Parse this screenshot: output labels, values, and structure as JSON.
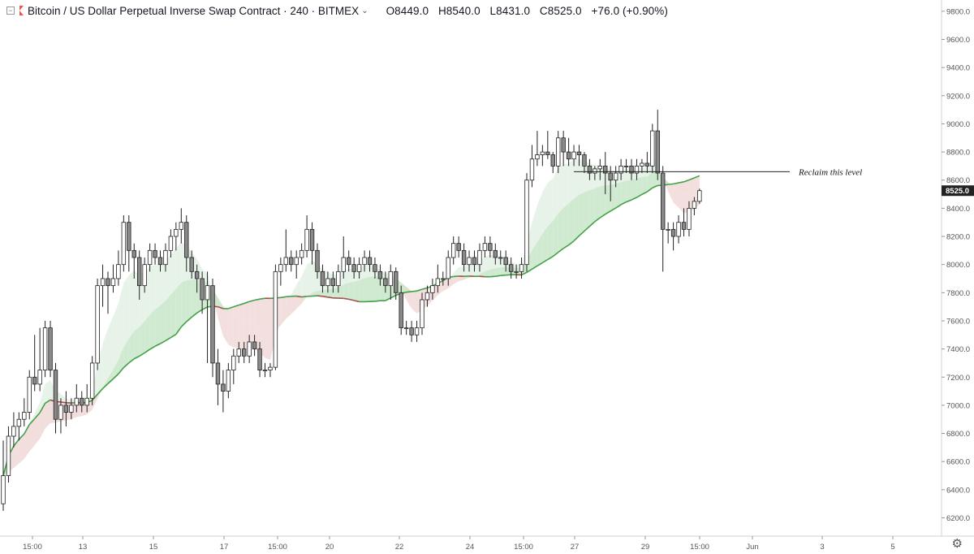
{
  "header": {
    "symbol": "Bitcoin / US Dollar Perpetual Inverse Swap Contract",
    "interval": "240",
    "exchange": "BITMEX",
    "open": "O8449.0",
    "high": "H8540.0",
    "low": "L8431.0",
    "close": "C8525.0",
    "change": "+76.0 (+0.90%)"
  },
  "chart_data": {
    "type": "candlestick",
    "y_ticks": [
      6200,
      6400,
      6600,
      6800,
      7000,
      7200,
      7400,
      7600,
      7800,
      8000,
      8200,
      8400,
      8600,
      8800,
      9000,
      9200,
      9400,
      9600,
      9800
    ],
    "y_tick_labels": [
      "6200.0",
      "6400.0",
      "6600.0",
      "6800.0",
      "7000.0",
      "7200.0",
      "7400.0",
      "7600.0",
      "7800.0",
      "8000.0",
      "8200.0",
      "8400.0",
      "8600.0",
      "8800.0",
      "9000.0",
      "9200.0",
      "9400.0",
      "9600.0",
      "9800.0"
    ],
    "ylim": [
      6070,
      9880
    ],
    "x_ticks": [
      "15:00",
      "13",
      "15",
      "17",
      "15:00",
      "20",
      "22",
      "24",
      "15:00",
      "27",
      "29",
      "15:00",
      "Jun",
      "3",
      "5"
    ],
    "last_price": "8525.0",
    "annotation": {
      "text": "Reclaim this level",
      "price": 8660
    },
    "candles": [
      [
        6300,
        6750,
        6250,
        6500
      ],
      [
        6500,
        6850,
        6450,
        6780
      ],
      [
        6780,
        6950,
        6700,
        6850
      ],
      [
        6850,
        6950,
        6750,
        6900
      ],
      [
        6900,
        7050,
        6850,
        6950
      ],
      [
        6950,
        7250,
        6900,
        7200
      ],
      [
        7200,
        7500,
        7100,
        7150
      ],
      [
        7150,
        7550,
        7100,
        7250
      ],
      [
        7250,
        7600,
        7200,
        7550
      ],
      [
        7550,
        7600,
        7200,
        7250
      ],
      [
        7250,
        7300,
        6800,
        6900
      ],
      [
        6900,
        7050,
        6800,
        7000
      ],
      [
        7000,
        7100,
        6850,
        6950
      ],
      [
        6950,
        7050,
        6900,
        7000
      ],
      [
        7000,
        7150,
        6950,
        7050
      ],
      [
        7050,
        7100,
        6950,
        7000
      ],
      [
        7000,
        7150,
        6950,
        7050
      ],
      [
        7050,
        7350,
        7000,
        7300
      ],
      [
        7300,
        7900,
        7250,
        7850
      ],
      [
        7850,
        8000,
        7700,
        7900
      ],
      [
        7900,
        7950,
        7650,
        7850
      ],
      [
        7850,
        8000,
        7800,
        7900
      ],
      [
        7900,
        8100,
        7850,
        8000
      ],
      [
        8000,
        8350,
        7950,
        8300
      ],
      [
        8300,
        8350,
        7950,
        8100
      ],
      [
        8100,
        8150,
        7900,
        8050
      ],
      [
        8050,
        8100,
        7750,
        7850
      ],
      [
        7850,
        8050,
        7800,
        8000
      ],
      [
        8000,
        8150,
        7950,
        8100
      ],
      [
        8100,
        8150,
        8000,
        8050
      ],
      [
        8050,
        8100,
        7950,
        8000
      ],
      [
        8000,
        8150,
        7950,
        8100
      ],
      [
        8100,
        8250,
        8050,
        8200
      ],
      [
        8200,
        8300,
        8100,
        8250
      ],
      [
        8250,
        8400,
        8150,
        8300
      ],
      [
        8300,
        8350,
        7950,
        8050
      ],
      [
        8050,
        8100,
        7900,
        7950
      ],
      [
        7950,
        8000,
        7800,
        7900
      ],
      [
        7900,
        7950,
        7650,
        7750
      ],
      [
        7750,
        7950,
        7300,
        7850
      ],
      [
        7850,
        7900,
        7200,
        7300
      ],
      [
        7300,
        7400,
        7000,
        7150
      ],
      [
        7150,
        7250,
        6950,
        7100
      ],
      [
        7100,
        7300,
        7050,
        7250
      ],
      [
        7250,
        7400,
        7150,
        7350
      ],
      [
        7350,
        7450,
        7300,
        7400
      ],
      [
        7400,
        7450,
        7300,
        7350
      ],
      [
        7350,
        7500,
        7300,
        7450
      ],
      [
        7450,
        7500,
        7350,
        7400
      ],
      [
        7400,
        7450,
        7200,
        7250
      ],
      [
        7250,
        7300,
        7200,
        7250
      ],
      [
        7250,
        7300,
        7200,
        7270
      ],
      [
        7270,
        8000,
        7250,
        7950
      ],
      [
        7950,
        8050,
        7850,
        8000
      ],
      [
        8000,
        8250,
        7950,
        8050
      ],
      [
        8050,
        8100,
        7950,
        8000
      ],
      [
        8000,
        8100,
        7900,
        8050
      ],
      [
        8050,
        8150,
        8000,
        8100
      ],
      [
        8100,
        8350,
        8050,
        8250
      ],
      [
        8250,
        8300,
        8000,
        8100
      ],
      [
        8100,
        8150,
        7900,
        7950
      ],
      [
        7950,
        8000,
        7800,
        7850
      ],
      [
        7850,
        7950,
        7800,
        7900
      ],
      [
        7900,
        7950,
        7800,
        7850
      ],
      [
        7850,
        8000,
        7800,
        7950
      ],
      [
        7950,
        8200,
        7900,
        8050
      ],
      [
        8050,
        8100,
        7950,
        8000
      ],
      [
        8000,
        8050,
        7900,
        7950
      ],
      [
        7950,
        8050,
        7900,
        8000
      ],
      [
        8000,
        8100,
        7950,
        8050
      ],
      [
        8050,
        8100,
        7950,
        8000
      ],
      [
        8000,
        8050,
        7900,
        7950
      ],
      [
        7950,
        8000,
        7850,
        7900
      ],
      [
        7900,
        7950,
        7800,
        7850
      ],
      [
        7850,
        8000,
        7750,
        7950
      ],
      [
        7950,
        7980,
        7750,
        7800
      ],
      [
        7800,
        7850,
        7500,
        7550
      ],
      [
        7550,
        7600,
        7500,
        7550
      ],
      [
        7550,
        7600,
        7450,
        7500
      ],
      [
        7500,
        7600,
        7450,
        7550
      ],
      [
        7550,
        7800,
        7500,
        7750
      ],
      [
        7750,
        7850,
        7700,
        7800
      ],
      [
        7800,
        7900,
        7750,
        7850
      ],
      [
        7850,
        8000,
        7800,
        7900
      ],
      [
        7900,
        7950,
        7850,
        7900
      ],
      [
        7900,
        8100,
        7850,
        8050
      ],
      [
        8050,
        8200,
        8000,
        8150
      ],
      [
        8150,
        8200,
        8050,
        8100
      ],
      [
        8100,
        8150,
        7950,
        8000
      ],
      [
        8000,
        8100,
        7950,
        8050
      ],
      [
        8050,
        8100,
        7950,
        8000
      ],
      [
        8000,
        8150,
        7950,
        8100
      ],
      [
        8100,
        8200,
        8050,
        8150
      ],
      [
        8150,
        8200,
        8050,
        8100
      ],
      [
        8100,
        8150,
        8000,
        8050
      ],
      [
        8050,
        8100,
        8000,
        8050
      ],
      [
        8050,
        8100,
        7950,
        8000
      ],
      [
        8000,
        8050,
        7900,
        7950
      ],
      [
        7950,
        8000,
        7900,
        7950
      ],
      [
        7950,
        8050,
        7900,
        8000
      ],
      [
        8000,
        8650,
        7950,
        8600
      ],
      [
        8600,
        8850,
        8550,
        8750
      ],
      [
        8750,
        8950,
        8700,
        8780
      ],
      [
        8780,
        8850,
        8700,
        8800
      ],
      [
        8800,
        8950,
        8750,
        8780
      ],
      [
        8780,
        8800,
        8650,
        8700
      ],
      [
        8700,
        8950,
        8650,
        8900
      ],
      [
        8900,
        8950,
        8700,
        8800
      ],
      [
        8800,
        8900,
        8700,
        8750
      ],
      [
        8750,
        8850,
        8700,
        8800
      ],
      [
        8800,
        8850,
        8700,
        8780
      ],
      [
        8780,
        8800,
        8650,
        8700
      ],
      [
        8700,
        8750,
        8600,
        8650
      ],
      [
        8650,
        8700,
        8600,
        8680
      ],
      [
        8680,
        8750,
        8600,
        8700
      ],
      [
        8700,
        8800,
        8500,
        8650
      ],
      [
        8650,
        8700,
        8450,
        8600
      ],
      [
        8600,
        8700,
        8550,
        8650
      ],
      [
        8650,
        8750,
        8600,
        8700
      ],
      [
        8700,
        8750,
        8650,
        8700
      ],
      [
        8700,
        8750,
        8600,
        8650
      ],
      [
        8650,
        8750,
        8600,
        8700
      ],
      [
        8700,
        8750,
        8650,
        8720
      ],
      [
        8720,
        8800,
        8650,
        8700
      ],
      [
        8700,
        9000,
        8650,
        8950
      ],
      [
        8950,
        9100,
        8600,
        8650
      ],
      [
        8650,
        8700,
        7950,
        8250
      ],
      [
        8250,
        8300,
        8150,
        8250
      ],
      [
        8250,
        8300,
        8100,
        8200
      ],
      [
        8200,
        8350,
        8150,
        8300
      ],
      [
        8300,
        8400,
        8200,
        8250
      ],
      [
        8250,
        8450,
        8200,
        8400
      ],
      [
        8400,
        8480,
        8350,
        8449
      ],
      [
        8449,
        8540,
        8431,
        8525
      ]
    ]
  }
}
